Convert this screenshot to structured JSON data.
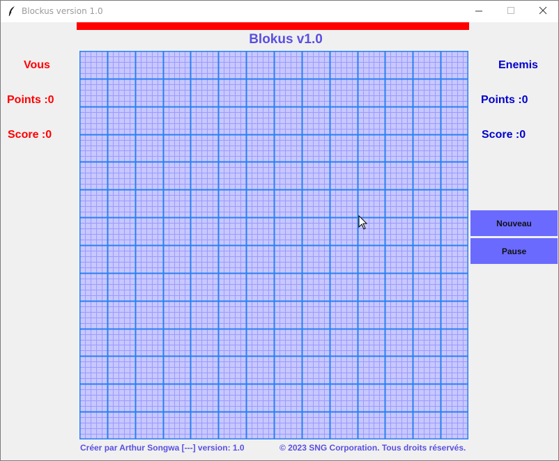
{
  "window": {
    "title": "Blockus version 1.0"
  },
  "game": {
    "title": "Blokus v1.0",
    "board_cells": 70
  },
  "player": {
    "label": "Vous",
    "points": "Points :0",
    "score": "Score :0",
    "color": "#ff0000"
  },
  "enemy": {
    "label": "Enemis",
    "points": "Points :0",
    "score": "Score :0",
    "color": "#0000cc"
  },
  "buttons": {
    "new_label": "Nouveau",
    "pause_label": "Pause"
  },
  "footer": {
    "credit": "Créer par Arthur Songwa [---] version: 1.0",
    "copyright": "© 2023 SNG Corporation. Tous droits réservés."
  },
  "colors": {
    "accent": "#5a4fe0",
    "board_fill": "#c8c8ff",
    "board_major_line": "#2a7ff0",
    "board_minor_line": "#9a9aff",
    "button_fill": "#6a6aff",
    "banner": "#ff0000"
  },
  "icons": {
    "app": "feather-icon",
    "minimize": "minimize-icon",
    "maximize": "maximize-icon",
    "close": "close-icon",
    "cursor": "mouse-pointer-icon"
  }
}
